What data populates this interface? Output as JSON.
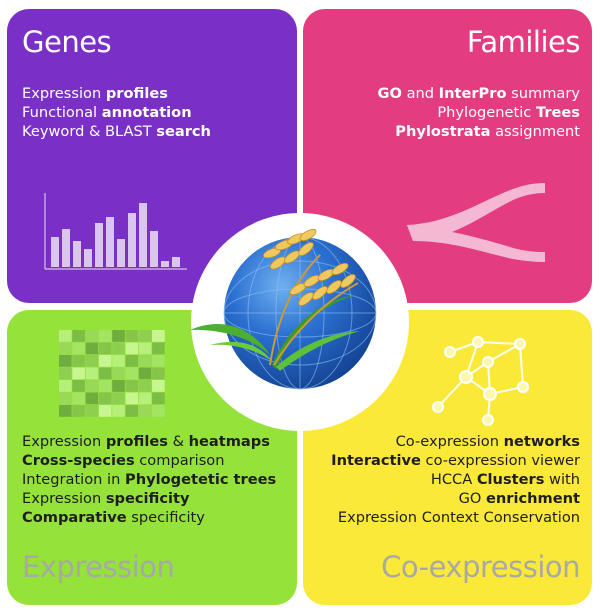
{
  "genes": {
    "title": "Genes",
    "lines": [
      {
        "pre": "Expression ",
        "bold": "profiles",
        "post": ""
      },
      {
        "pre": "Functional ",
        "bold": "annotation",
        "post": ""
      },
      {
        "pre": "Keyword & BLAST ",
        "bold": "search",
        "post": ""
      }
    ]
  },
  "families": {
    "title": "Families",
    "lines": [
      {
        "b1": "GO",
        "mid": " and ",
        "b2": "InterPro",
        "post": " summary"
      },
      {
        "pre": "Phylogenetic ",
        "bold": "Trees"
      },
      {
        "bold": "Phylostrata",
        "post": " assignment"
      }
    ]
  },
  "expression": {
    "title": "Expression",
    "lines": [
      {
        "pre": "Expression ",
        "b1": "profiles",
        "mid": " & ",
        "b2": "heatmaps"
      },
      {
        "bold": "Cross-species",
        "post": " comparison"
      },
      {
        "pre": "Integration in ",
        "bold": "Phylogetetic trees"
      },
      {
        "pre": "Expression ",
        "bold": "specificity"
      },
      {
        "bold": "Comparative",
        "post": " specificity"
      }
    ]
  },
  "coexpression": {
    "title": "Co-expression",
    "lines": [
      {
        "pre": "Co-expression ",
        "bold": "networks"
      },
      {
        "bold": "Interactive",
        "post": " co-expression viewer"
      },
      {
        "pre": "HCCA ",
        "bold": "Clusters",
        "post": " with"
      },
      {
        "pre": "GO ",
        "bold": "enrichment"
      },
      {
        "pre": "Expression Context Conservation"
      }
    ]
  },
  "colors": {
    "genes": "#7a30c6",
    "families": "#e43c80",
    "expression": "#95e23b",
    "coexpression": "#fbe93a"
  }
}
